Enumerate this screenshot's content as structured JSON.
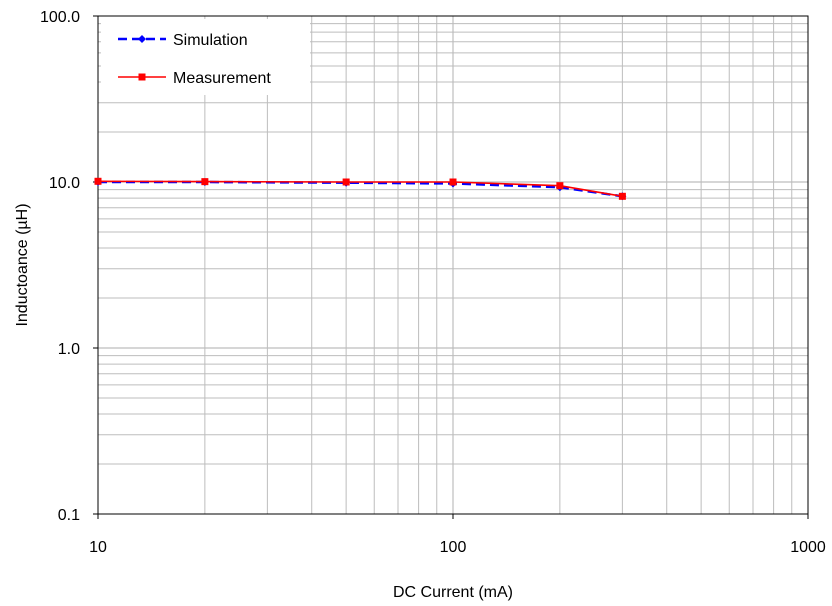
{
  "chart_data": {
    "type": "line",
    "xlabel": "DC Current (mA)",
    "ylabel": "Inductoance (µH)",
    "x_scale": "log",
    "y_scale": "log",
    "xlim": [
      10,
      1000
    ],
    "ylim": [
      0.1,
      100
    ],
    "x_ticks": [
      "10",
      "100",
      "1000"
    ],
    "y_ticks": [
      "100.0",
      "10.0",
      "1.0",
      "0.1"
    ],
    "grid": true,
    "legend_position": "top-left",
    "series": [
      {
        "name": "Simulation",
        "color": "#0000ff",
        "style": "dashed",
        "marker": "diamond",
        "x": [
          10,
          20,
          50,
          100,
          200,
          300
        ],
        "y": [
          10.0,
          10.0,
          9.9,
          9.8,
          9.3,
          8.2
        ]
      },
      {
        "name": "Measurement",
        "color": "#ff0000",
        "style": "solid",
        "marker": "square",
        "x": [
          10,
          20,
          50,
          100,
          200,
          300
        ],
        "y": [
          10.1,
          10.05,
          10.0,
          10.0,
          9.5,
          8.2
        ]
      }
    ]
  }
}
